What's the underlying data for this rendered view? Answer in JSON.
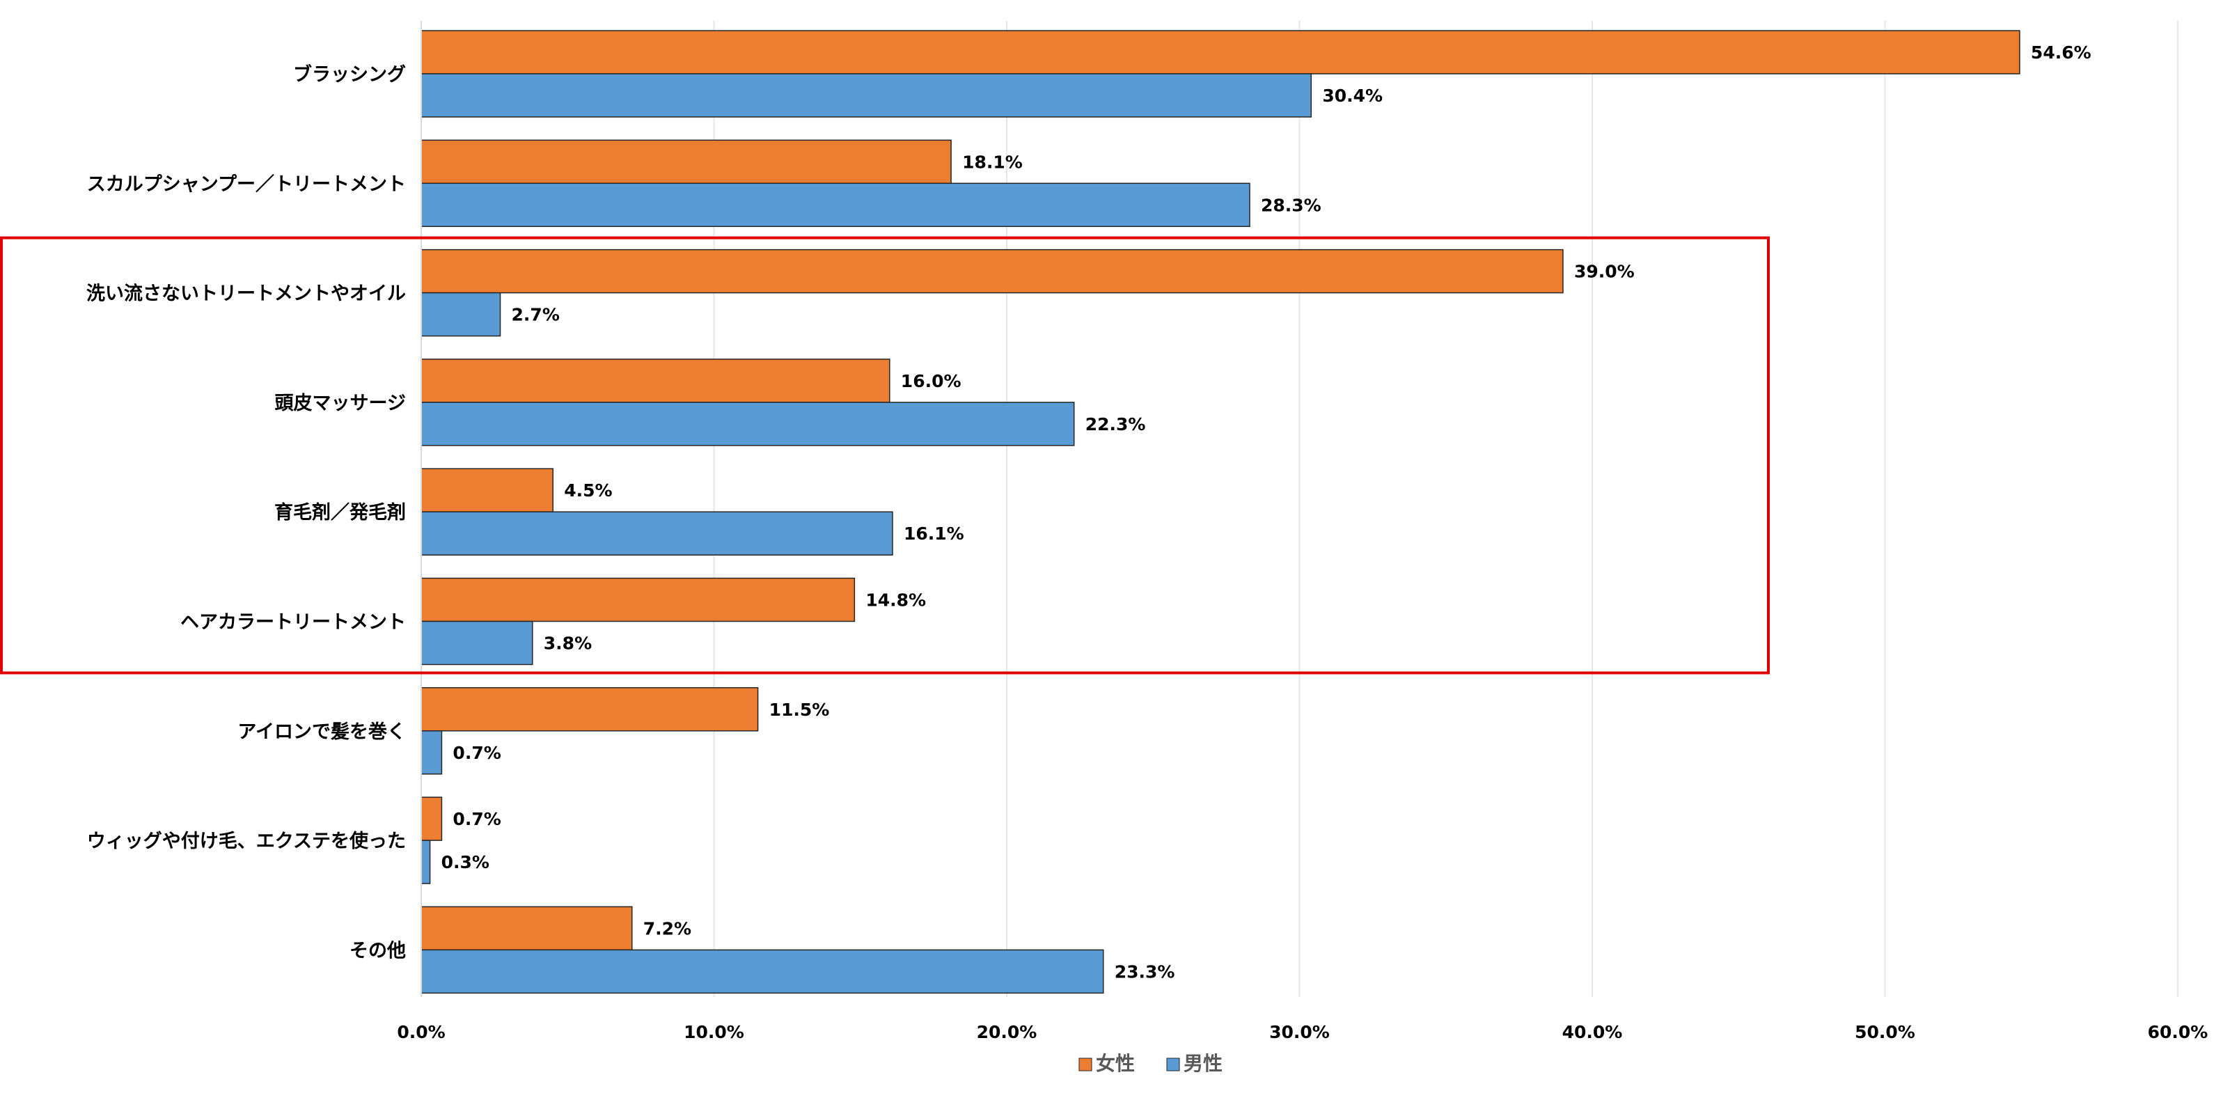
{
  "chart_data": {
    "type": "bar",
    "orientation": "horizontal",
    "categories": [
      "ブラッシング",
      "スカルプシャンプー／トリートメント",
      "洗い流さないトリートメントやオイル",
      "頭皮マッサージ",
      "育毛剤／発毛剤",
      "ヘアカラートリートメント",
      "アイロンで髪を巻く",
      "ウィッグや付け毛、エクステを使った",
      "その他"
    ],
    "series": [
      {
        "name": "女性",
        "color": "#ED7D31",
        "values": [
          54.6,
          18.1,
          39.0,
          16.0,
          4.5,
          14.8,
          11.5,
          0.7,
          7.2
        ],
        "labels": [
          "54.6%",
          "18.1%",
          "39.0%",
          "16.0%",
          "4.5%",
          "14.8%",
          "11.5%",
          "0.7%",
          "7.2%"
        ]
      },
      {
        "name": "男性",
        "color": "#5B9BD5",
        "values": [
          30.4,
          28.3,
          2.7,
          22.3,
          16.1,
          3.8,
          0.7,
          0.3,
          23.3
        ],
        "labels": [
          "30.4%",
          "28.3%",
          "2.7%",
          "22.3%",
          "16.1%",
          "3.8%",
          "0.7%",
          "0.3%",
          "23.3%"
        ]
      }
    ],
    "xlim": [
      0,
      60
    ],
    "xticks": [
      0,
      10,
      20,
      30,
      40,
      50,
      60
    ],
    "xtick_labels": [
      "0.0%",
      "10.0%",
      "20.0%",
      "30.0%",
      "40.0%",
      "50.0%",
      "60.0%"
    ],
    "grid": "vertical",
    "legend_position": "bottom",
    "highlight": {
      "categories": [
        "洗い流さないトリートメントやオイル",
        "ヘアカラートリートメント"
      ],
      "color": "#E00000"
    },
    "title": "",
    "xlabel": "",
    "ylabel": ""
  }
}
